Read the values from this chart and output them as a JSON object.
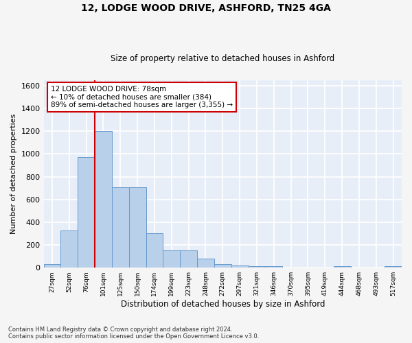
{
  "title_line1": "12, LODGE WOOD DRIVE, ASHFORD, TN25 4GA",
  "title_line2": "Size of property relative to detached houses in Ashford",
  "xlabel": "Distribution of detached houses by size in Ashford",
  "ylabel": "Number of detached properties",
  "footer_line1": "Contains HM Land Registry data © Crown copyright and database right 2024.",
  "footer_line2": "Contains public sector information licensed under the Open Government Licence v3.0.",
  "bar_values": [
    30,
    325,
    970,
    1200,
    710,
    710,
    305,
    155,
    155,
    80,
    30,
    20,
    15,
    15,
    0,
    0,
    0,
    15,
    0,
    0,
    15
  ],
  "bin_labels": [
    "27sqm",
    "52sqm",
    "76sqm",
    "101sqm",
    "125sqm",
    "150sqm",
    "174sqm",
    "199sqm",
    "223sqm",
    "248sqm",
    "272sqm",
    "297sqm",
    "321sqm",
    "346sqm",
    "370sqm",
    "395sqm",
    "419sqm",
    "444sqm",
    "468sqm",
    "493sqm",
    "517sqm"
  ],
  "bar_color": "#b8d0ea",
  "bar_edge_color": "#6699cc",
  "background_color": "#e8eef8",
  "grid_color": "#ffffff",
  "red_line_color": "#cc0000",
  "annotation_text": "12 LODGE WOOD DRIVE: 78sqm\n← 10% of detached houses are smaller (384)\n89% of semi-detached houses are larger (3,355) →",
  "annotation_box_color": "#ffffff",
  "annotation_box_edge": "#cc0000",
  "ylim": [
    0,
    1650
  ],
  "yticks": [
    0,
    200,
    400,
    600,
    800,
    1000,
    1200,
    1400,
    1600
  ],
  "fig_bg": "#f5f5f5"
}
